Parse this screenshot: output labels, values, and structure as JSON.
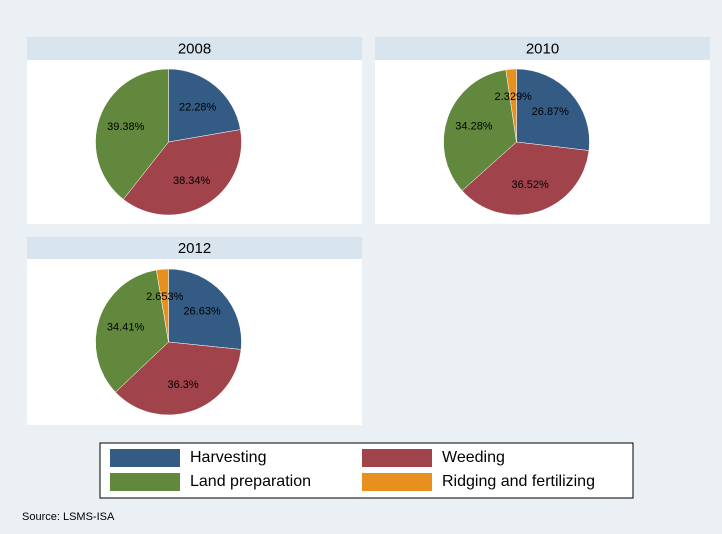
{
  "chart_data": [
    {
      "type": "pie",
      "title": "2008",
      "categories": [
        "Harvesting",
        "Weeding",
        "Land preparation"
      ],
      "values": [
        22.28,
        38.34,
        39.38
      ],
      "value_labels": [
        "22.28%",
        "38.34%",
        "39.38%"
      ],
      "colors": [
        "#335b84",
        "#a0434b",
        "#61883d"
      ]
    },
    {
      "type": "pie",
      "title": "2010",
      "categories": [
        "Harvesting",
        "Weeding",
        "Land preparation",
        "Ridging and fertilizing"
      ],
      "values": [
        26.87,
        36.52,
        34.28,
        2.329
      ],
      "value_labels": [
        "26.87%",
        "36.52%",
        "34.28%",
        "2.329%"
      ],
      "colors": [
        "#335b84",
        "#a0434b",
        "#61883d",
        "#e8901e"
      ]
    },
    {
      "type": "pie",
      "title": "2012",
      "categories": [
        "Harvesting",
        "Weeding",
        "Land preparation",
        "Ridging and fertilizing"
      ],
      "values": [
        26.63,
        36.3,
        34.41,
        2.653
      ],
      "value_labels": [
        "26.63%",
        "36.3%",
        "34.41%",
        "2.653%"
      ],
      "colors": [
        "#335b84",
        "#a0434b",
        "#61883d",
        "#e8901e"
      ]
    }
  ],
  "source": "Source: LSMS-ISA"
}
